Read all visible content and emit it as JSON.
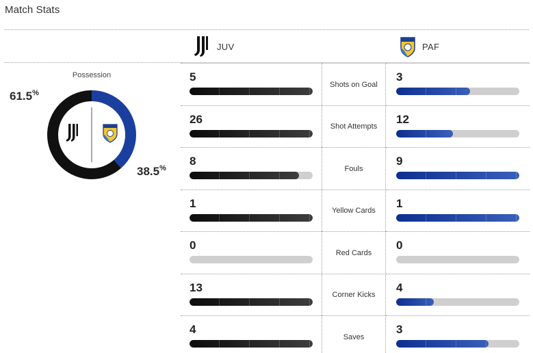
{
  "title": "Match Stats",
  "teams": {
    "home": {
      "abbr": "JUV",
      "logo_icon": "juventus-logo-icon",
      "color": "#111111"
    },
    "away": {
      "abbr": "PAF",
      "logo_icon": "pafos-logo-icon",
      "color": "#1a3f9e"
    }
  },
  "possession": {
    "label": "Possession",
    "home_value": "61.5",
    "away_value": "38.5",
    "unit": "%",
    "home_fraction": 0.615,
    "away_fraction": 0.385
  },
  "stats": [
    {
      "label": "Shots on Goal",
      "home": "5",
      "away": "3",
      "home_fill": 1.0,
      "away_fill": 0.6
    },
    {
      "label": "Shot Attempts",
      "home": "26",
      "away": "12",
      "home_fill": 1.0,
      "away_fill": 0.4615
    },
    {
      "label": "Fouls",
      "home": "8",
      "away": "9",
      "home_fill": 0.889,
      "away_fill": 1.0
    },
    {
      "label": "Yellow Cards",
      "home": "1",
      "away": "1",
      "home_fill": 1.0,
      "away_fill": 1.0
    },
    {
      "label": "Red Cards",
      "home": "0",
      "away": "0",
      "home_fill": 0.0,
      "away_fill": 0.0
    },
    {
      "label": "Corner Kicks",
      "home": "13",
      "away": "4",
      "home_fill": 1.0,
      "away_fill": 0.3077
    },
    {
      "label": "Saves",
      "home": "4",
      "away": "3",
      "home_fill": 1.0,
      "away_fill": 0.75
    }
  ]
}
